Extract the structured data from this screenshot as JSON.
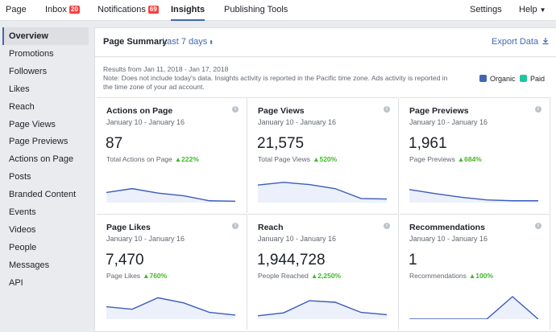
{
  "topnav": {
    "page": "Page",
    "inbox": "Inbox",
    "inbox_badge": "20",
    "notifications": "Notifications",
    "notifications_badge": "69",
    "insights": "Insights",
    "publishing_tools": "Publishing Tools",
    "settings": "Settings",
    "help": "Help"
  },
  "sidebar": {
    "items": [
      {
        "label": "Overview"
      },
      {
        "label": "Promotions"
      },
      {
        "label": "Followers"
      },
      {
        "label": "Likes"
      },
      {
        "label": "Reach"
      },
      {
        "label": "Page Views"
      },
      {
        "label": "Page Previews"
      },
      {
        "label": "Actions on Page"
      },
      {
        "label": "Posts"
      },
      {
        "label": "Branded Content"
      },
      {
        "label": "Events"
      },
      {
        "label": "Videos"
      },
      {
        "label": "People"
      },
      {
        "label": "Messages"
      },
      {
        "label": "API"
      }
    ]
  },
  "summary": {
    "title": "Page Summary",
    "period": "Last 7 days",
    "export": "Export Data",
    "results_line": "Results from Jan 11, 2018 - Jan 17, 2018",
    "note": "Note: Does not include today's data. Insights activity is reported in the Pacific time zone. Ads activity is reported in the time zone of your ad account.",
    "legend": [
      {
        "label": "Organic",
        "color": "#4267b2"
      },
      {
        "label": "Paid",
        "color": "#20c5a0"
      }
    ]
  },
  "cards": [
    {
      "title": "Actions on Page",
      "date": "January 10 - January 16",
      "value": "87",
      "sub": "Total Actions on Page",
      "change": "▲222%",
      "trend": [
        0.45,
        0.62,
        0.42,
        0.3,
        0.08,
        0.06
      ]
    },
    {
      "title": "Page Views",
      "date": "January 10 - January 16",
      "value": "21,575",
      "sub": "Total Page Views",
      "change": "▲520%",
      "trend": [
        0.78,
        0.9,
        0.8,
        0.62,
        0.18,
        0.16
      ]
    },
    {
      "title": "Page Previews",
      "date": "January 10 - January 16",
      "value": "1,961",
      "sub": "Page Previews",
      "change": "▲684%",
      "trend": [
        0.58,
        0.4,
        0.24,
        0.12,
        0.08,
        0.08
      ]
    },
    {
      "title": "Page Likes",
      "date": "January 10 - January 16",
      "value": "7,470",
      "sub": "Page Likes",
      "change": "▲760%",
      "trend": [
        0.55,
        0.44,
        0.95,
        0.72,
        0.3,
        0.18
      ]
    },
    {
      "title": "Reach",
      "date": "January 10 - January 16",
      "value": "1,944,728",
      "sub": "People Reached",
      "change": "▲2,250%",
      "trend": [
        0.15,
        0.28,
        0.82,
        0.75,
        0.3,
        0.2
      ]
    },
    {
      "title": "Recommendations",
      "date": "January 10 - January 16",
      "value": "1",
      "sub": "Recommendations",
      "change": "▲100%",
      "trend": [
        0,
        0,
        0,
        0,
        1,
        0
      ]
    }
  ]
}
